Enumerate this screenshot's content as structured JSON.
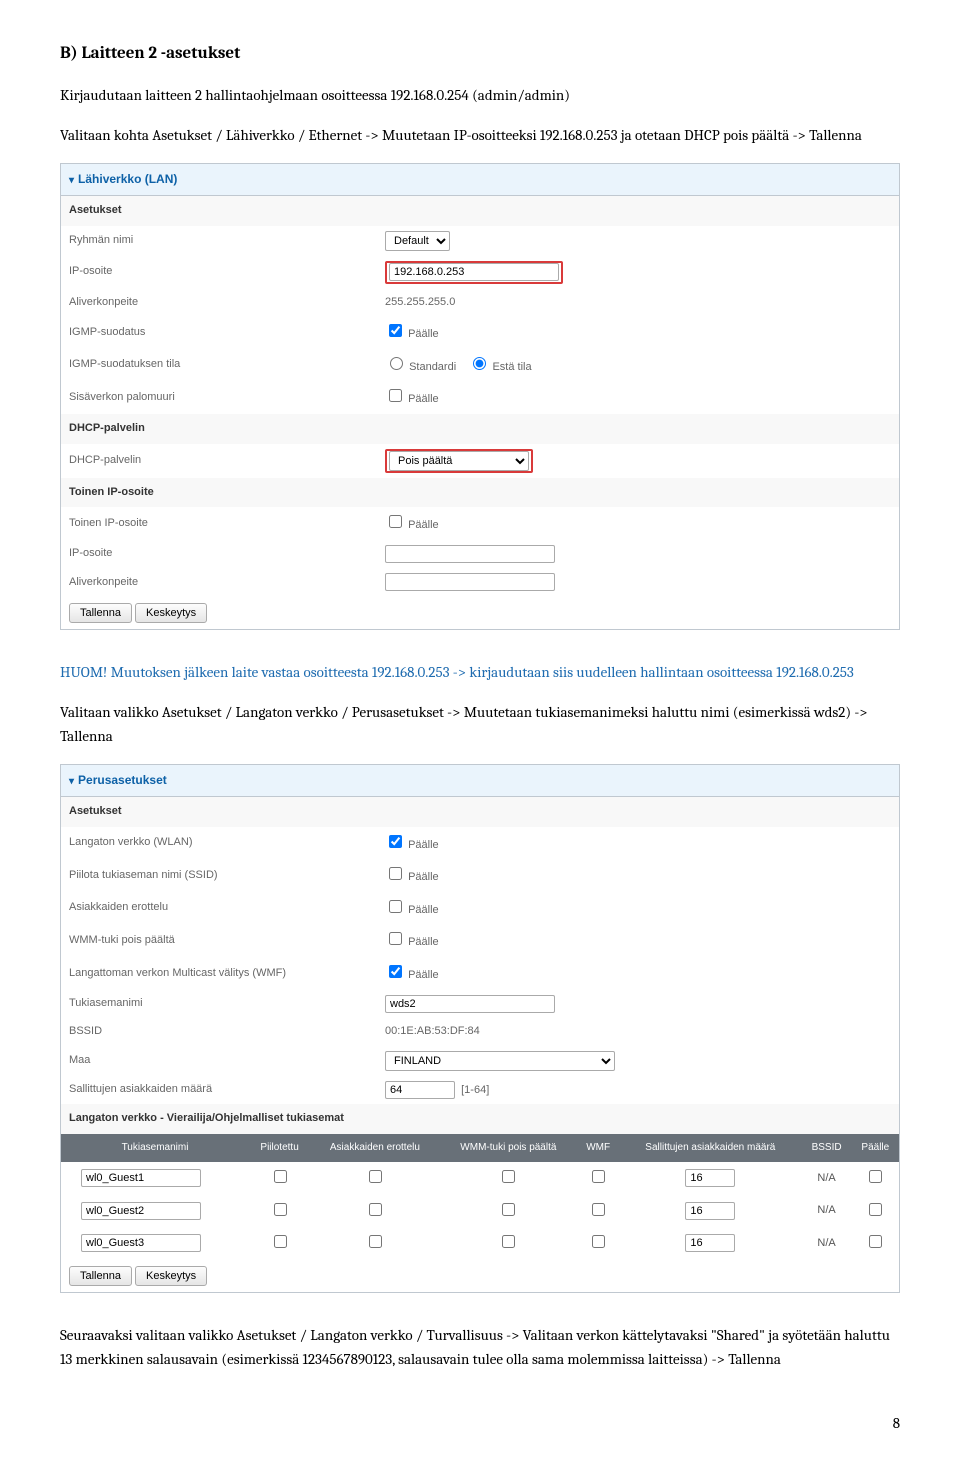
{
  "doc": {
    "heading": "B) Laitteen 2 -asetukset",
    "para1": "Kirjaudutaan laitteen 2 hallintaohjelmaan osoitteessa 192.168.0.254 (admin/admin)",
    "para2": "Valitaan kohta Asetukset / Lähiverkko / Ethernet -> Muutetaan IP-osoitteeksi 192.168.0.253 ja otetaan DHCP pois päältä -> Tallenna",
    "para3a": "HUOM! Muutoksen jälkeen laite vastaa osoitteesta 192.168.0.253 -> kirjaudutaan siis uudelleen hallintaan osoitteessa 192.168.0.253",
    "para4": "Valitaan valikko Asetukset / Langaton verkko / Perusasetukset -> Muutetaan tukiasemanimeksi haluttu nimi (esimerkissä wds2) -> Tallenna",
    "para5": "Seuraavaksi valitaan valikko Asetukset / Langaton verkko / Turvallisuus -> Valitaan verkon kättelytavaksi \"Shared\" ja syötetään haluttu 13 merkkinen salausavain (esimerkissä 1234567890123, salausavain tulee olla sama molemmissa laitteissa) -> Tallenna",
    "pagenum": "8"
  },
  "lan": {
    "section_title": "Lähiverkko (LAN)",
    "settings_label": "Asetukset",
    "rows": {
      "group_name": {
        "label": "Ryhmän nimi",
        "value": "Default"
      },
      "ip": {
        "label": "IP-osoite",
        "value": "192.168.0.253"
      },
      "subnet": {
        "label": "Aliverkonpeite",
        "value": "255.255.255.0"
      },
      "igmp_filter": {
        "label": "IGMP-suodatus",
        "checkbox_label": "Päälle",
        "checked": true
      },
      "igmp_state": {
        "label": "IGMP-suodatuksen tila",
        "opt1": "Standardi",
        "opt2": "Estä tila",
        "selected": 2
      },
      "firewall": {
        "label": "Sisäverkon palomuuri",
        "checkbox_label": "Päälle",
        "checked": false
      }
    },
    "dhcp_hdr": "DHCP-palvelin",
    "dhcp": {
      "label": "DHCP-palvelin",
      "value": "Pois päältä"
    },
    "second_ip_hdr": "Toinen IP-osoite",
    "second_ip": {
      "enable_label": "Toinen IP-osoite",
      "enable_cb": "Päälle",
      "checked": false,
      "ip_label": "IP-osoite",
      "ip_val": "",
      "mask_label": "Aliverkonpeite",
      "mask_val": ""
    },
    "btn_save": "Tallenna",
    "btn_cancel": "Keskeytys"
  },
  "wlan": {
    "section_title": "Perusasetukset",
    "settings_label": "Asetukset",
    "rows": {
      "wlan_on": {
        "label": "Langaton verkko (WLAN)",
        "cb": "Päälle",
        "checked": true
      },
      "hide_ssid": {
        "label": "Piilota tukiaseman nimi (SSID)",
        "cb": "Päälle",
        "checked": false
      },
      "client_iso": {
        "label": "Asiakkaiden erottelu",
        "cb": "Päälle",
        "checked": false
      },
      "wmm_off": {
        "label": "WMM-tuki pois päältä",
        "cb": "Päälle",
        "checked": false
      },
      "wmf": {
        "label": "Langattoman verkon Multicast välitys (WMF)",
        "cb": "Päälle",
        "checked": true
      },
      "ssid": {
        "label": "Tukiasemanimi",
        "value": "wds2"
      },
      "bssid": {
        "label": "BSSID",
        "value": "00:1E:AB:53:DF:84"
      },
      "country": {
        "label": "Maa",
        "value": "FINLAND"
      },
      "max_clients": {
        "label": "Sallittujen asiakkaiden määrä",
        "value": "64",
        "range": "[1-64]"
      }
    },
    "guest_hdr": "Langaton verkko - Vierailija/Ohjelmalliset tukiasemat",
    "grid_headers": [
      "Tukiasemanimi",
      "Piilotettu",
      "Asiakkaiden erottelu",
      "WMM-tuki pois päältä",
      "WMF",
      "Sallittujen asiakkaiden määrä",
      "BSSID",
      "Päälle"
    ],
    "guests": [
      {
        "name": "wl0_Guest1",
        "hidden": false,
        "iso": false,
        "wmm": false,
        "wmf": false,
        "max": "16",
        "bssid": "N/A",
        "on": false
      },
      {
        "name": "wl0_Guest2",
        "hidden": false,
        "iso": false,
        "wmm": false,
        "wmf": false,
        "max": "16",
        "bssid": "N/A",
        "on": false
      },
      {
        "name": "wl0_Guest3",
        "hidden": false,
        "iso": false,
        "wmm": false,
        "wmf": false,
        "max": "16",
        "bssid": "N/A",
        "on": false
      }
    ],
    "btn_save": "Tallenna",
    "btn_cancel": "Keskeytys"
  }
}
